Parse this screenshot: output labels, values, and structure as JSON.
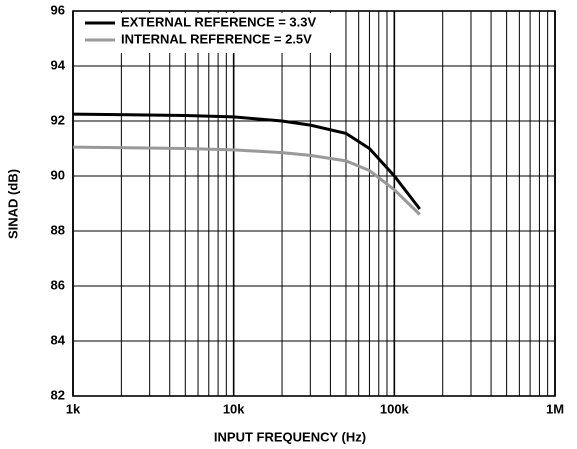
{
  "chart_data": {
    "type": "line",
    "xlabel": "INPUT FREQUENCY (Hz)",
    "ylabel": "SINAD (dB)",
    "x": [
      1000,
      5000,
      10000,
      20000,
      30000,
      50000,
      70000,
      100000,
      144000
    ],
    "series": [
      {
        "name": "EXTERNAL REFERENCE = 3.3V",
        "color": "#000000",
        "values": [
          92.25,
          92.2,
          92.15,
          92.0,
          91.85,
          91.55,
          91.0,
          90.0,
          88.8
        ]
      },
      {
        "name": "INTERNAL REFERENCE = 2.5V",
        "color": "#999999",
        "values": [
          91.05,
          91.0,
          90.95,
          90.85,
          90.75,
          90.55,
          90.2,
          89.5,
          88.6
        ]
      }
    ],
    "xscale": "log",
    "xlim": [
      1000,
      1000000
    ],
    "xticks": [
      {
        "value": 1000,
        "label": "1k"
      },
      {
        "value": 10000,
        "label": "10k"
      },
      {
        "value": 100000,
        "label": "100k"
      },
      {
        "value": 1000000,
        "label": "1M"
      }
    ],
    "ylim": [
      82,
      96
    ],
    "yticks": [
      82,
      84,
      86,
      88,
      90,
      92,
      94,
      96
    ],
    "grid": true,
    "legend": "top-left"
  }
}
